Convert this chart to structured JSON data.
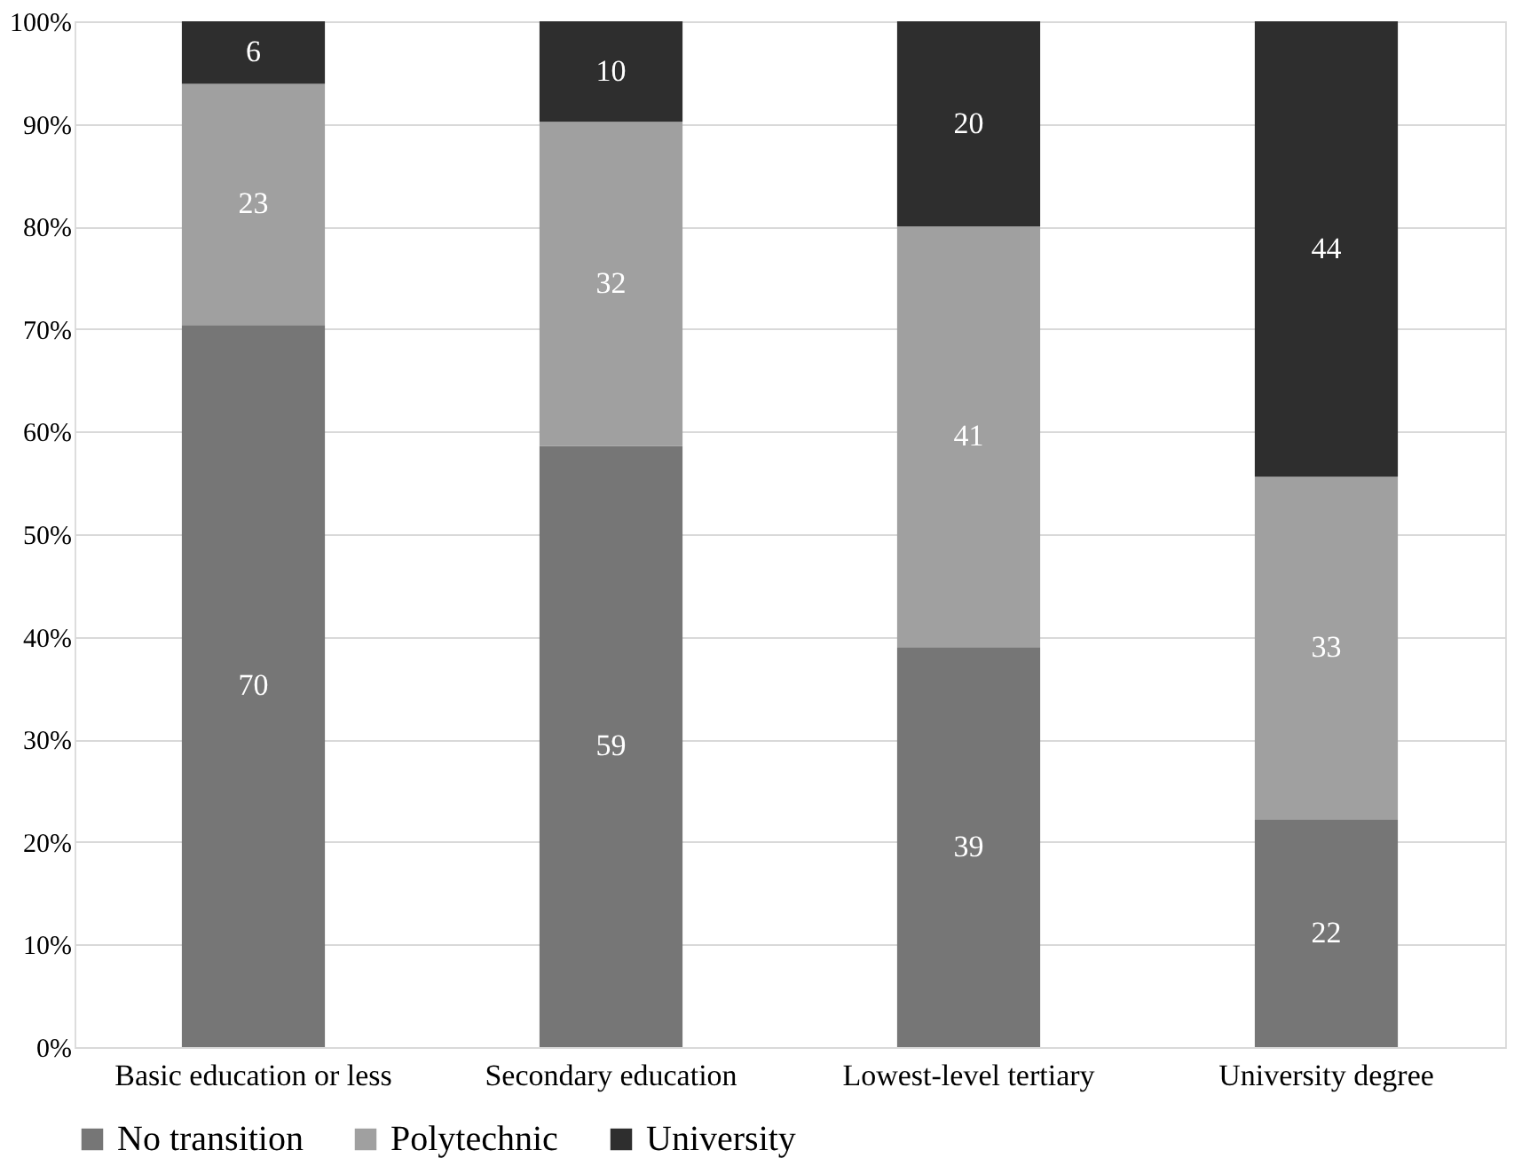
{
  "chart_data": {
    "type": "bar",
    "stacked": true,
    "categories": [
      "Basic education or less",
      "Secondary education",
      "Lowest-level tertiary",
      "University degree"
    ],
    "series": [
      {
        "name": "No transition",
        "color": "#767676",
        "values": [
          70.4,
          58.6,
          39.0,
          22.2
        ],
        "value_labels": [
          "70",
          "59",
          "39",
          "22"
        ]
      },
      {
        "name": "Polytechnic",
        "color": "#a0a0a0",
        "values": [
          23.5,
          31.6,
          41.0,
          33.4
        ],
        "value_labels": [
          "23",
          "32",
          "41",
          "33"
        ]
      },
      {
        "name": "University",
        "color": "#2e2e2e",
        "values": [
          6.1,
          9.8,
          20.0,
          44.4
        ],
        "value_labels": [
          "6",
          "10",
          "20",
          "44"
        ]
      }
    ],
    "ylim": [
      0,
      100
    ],
    "yticks": [
      {
        "value": 0,
        "label": "0%"
      },
      {
        "value": 10,
        "label": "10%"
      },
      {
        "value": 20,
        "label": "20%"
      },
      {
        "value": 30,
        "label": "30%"
      },
      {
        "value": 40,
        "label": "40%"
      },
      {
        "value": 50,
        "label": "50%"
      },
      {
        "value": 60,
        "label": "60%"
      },
      {
        "value": 70,
        "label": "70%"
      },
      {
        "value": 80,
        "label": "80%"
      },
      {
        "value": 90,
        "label": "90%"
      },
      {
        "value": 100,
        "label": "100%"
      }
    ],
    "grid": "y",
    "legend": "bottom"
  }
}
